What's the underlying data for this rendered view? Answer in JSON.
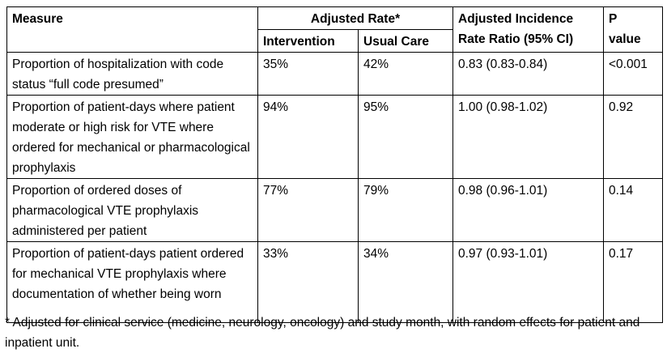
{
  "header": {
    "measure": "Measure",
    "adjusted_rate": "Adjusted Rate*",
    "intervention": "Intervention",
    "usual_care": "Usual Care",
    "irr_line1": "Adjusted Incidence",
    "irr_line2": "Rate Ratio (95% CI)",
    "p_line1": "P",
    "p_line2": "value"
  },
  "rows": [
    {
      "measure": "Proportion of hospitalization with code status “full code presumed”",
      "intervention": "35%",
      "usual_care": "42%",
      "irr": "0.83 (0.83-0.84)",
      "p": "<0.001"
    },
    {
      "measure": "Proportion of patient-days where patient moderate or high risk for VTE where ordered for mechanical or pharmacological prophylaxis",
      "intervention": "94%",
      "usual_care": "95%",
      "irr": "1.00 (0.98-1.02)",
      "p": "0.92"
    },
    {
      "measure": "Proportion of ordered doses of pharmacological VTE prophylaxis administered per patient",
      "intervention": "77%",
      "usual_care": "79%",
      "irr": "0.98 (0.96-1.01)",
      "p": "0.14"
    },
    {
      "measure": "Proportion of patient-days patient ordered for mechanical VTE prophylaxis where documentation of whether being worn",
      "intervention": "33%",
      "usual_care": "34%",
      "irr": "0.97 (0.93-1.01)",
      "p": "0.17"
    }
  ],
  "footnote": "* Adjusted for clinical service (medicine, neurology, oncology) and study month, with random effects for patient and inpatient unit."
}
